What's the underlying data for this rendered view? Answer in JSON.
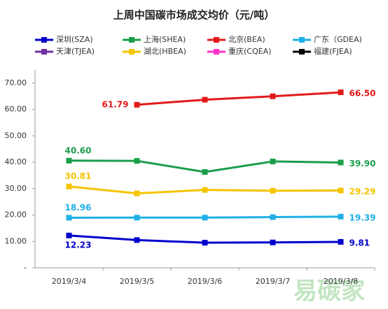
{
  "chart_data": {
    "type": "line",
    "title": "上周中国碳市场成交均价（元/吨）",
    "categories": [
      "2019/3/4",
      "2019/3/5",
      "2019/3/6",
      "2019/3/7",
      "2019/3/8"
    ],
    "ylim": [
      0,
      75
    ],
    "yticks": [
      {
        "value": 0,
        "label": "-"
      },
      {
        "value": 10,
        "label": "10.00"
      },
      {
        "value": 20,
        "label": "20.00"
      },
      {
        "value": 30,
        "label": "30.00"
      },
      {
        "value": 40,
        "label": "40.00"
      },
      {
        "value": 50,
        "label": "50.00"
      },
      {
        "value": 60,
        "label": "60.00"
      },
      {
        "value": 70,
        "label": "70.00"
      }
    ],
    "watermark": "易碳家",
    "series": [
      {
        "name": "深圳(SZA)",
        "color": "#0000cc",
        "values": [
          12.23,
          10.5,
          9.5,
          9.6,
          9.81
        ],
        "value_labels": [
          "12.23",
          null,
          null,
          null,
          "9.81"
        ]
      },
      {
        "name": "上海(SHEA)",
        "color": "#1a9e4a",
        "values": [
          40.6,
          40.5,
          36.3,
          40.3,
          39.9
        ],
        "value_labels": [
          "40.60",
          null,
          null,
          null,
          "39.90"
        ]
      },
      {
        "name": "北京(BEA)",
        "color": "#e31a1a",
        "values": [
          null,
          61.79,
          63.7,
          65.0,
          66.5
        ],
        "value_labels": [
          null,
          "61.79",
          null,
          null,
          "66.50"
        ]
      },
      {
        "name": "广东（GDEA)",
        "color": "#1fb0e6",
        "values": [
          18.96,
          19.0,
          19.0,
          19.2,
          19.39
        ],
        "value_labels": [
          "18.96",
          null,
          null,
          null,
          "19.39"
        ]
      },
      {
        "name": "天津(TJEA)",
        "color": "#7030a0",
        "values": [
          null,
          null,
          null,
          null,
          null
        ]
      },
      {
        "name": "湖北(HBEA)",
        "color": "#f5c400",
        "values": [
          30.81,
          28.2,
          29.5,
          29.2,
          29.29
        ],
        "value_labels": [
          "30.81",
          null,
          null,
          null,
          "29.29"
        ]
      },
      {
        "name": "重庆(CQEA)",
        "color": "#ff33cc",
        "values": [
          null,
          null,
          null,
          null,
          null
        ]
      },
      {
        "name": "福建(FJEA)",
        "color": "#000000",
        "values": [
          null,
          null,
          null,
          null,
          null
        ]
      }
    ]
  }
}
